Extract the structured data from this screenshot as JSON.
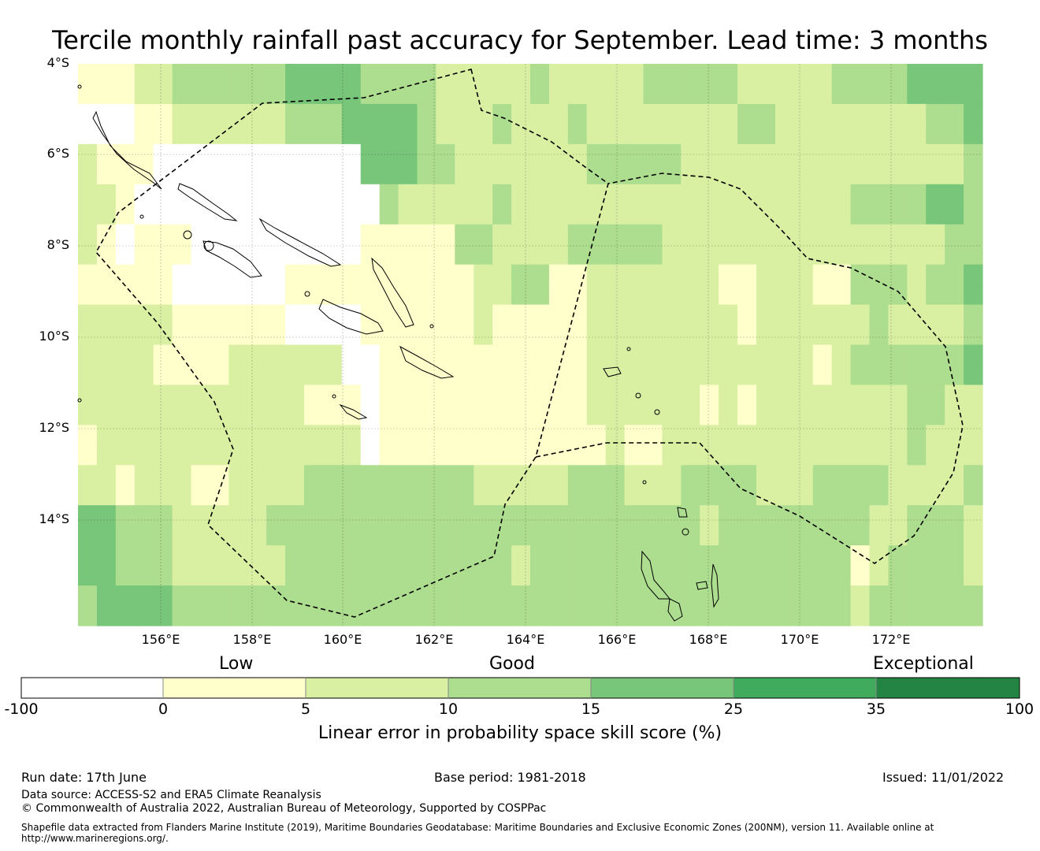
{
  "title": "Tercile monthly rainfall past accuracy for September. Lead time: 3 months",
  "axes": {
    "lat_ticks": [
      "4°S",
      "6°S",
      "8°S",
      "10°S",
      "12°S",
      "14°S"
    ],
    "lon_ticks": [
      "156°E",
      "158°E",
      "160°E",
      "162°E",
      "164°E",
      "166°E",
      "168°E",
      "170°E",
      "172°E"
    ]
  },
  "legend": {
    "categories": [
      "Low",
      "Good",
      "Exceptional"
    ],
    "ticks": [
      "-100",
      "0",
      "5",
      "10",
      "15",
      "25",
      "35",
      "100"
    ],
    "colors": [
      "#ffffff",
      "#ffffcc",
      "#d9f0a3",
      "#addd8e",
      "#78c679",
      "#41ab5d",
      "#238443"
    ],
    "label": "Linear error in probability space skill score (%)"
  },
  "footer": {
    "run_date": "Run date: 17th June",
    "base_period": "Base period: 1981-2018",
    "issued": "Issued: 11/01/2022",
    "data_source": "Data source: ACCESS-S2 and ERA5 Climate Reanalysis",
    "copyright": "© Commonwealth of Australia 2022, Australian Bureau of Meteorology, Supported by COSPPac",
    "shapefile": "Shapefile data extracted from Flanders Marine Institute (2019), Maritime Boundaries Geodatabase: Maritime Boundaries and Exclusive Economic Zones (200NM), version 11. Available online at http://www.marineregions.org/."
  },
  "grid": {
    "lon_start": "154.2°E",
    "lat_start": "4°S",
    "cell_deg": 0.833,
    "levels_legend": "0=white(<0), 1=yellow(0-5), 2=light green(5-10), 3=green(10-15), 4=mid green(15-25), 5=dark green(25-35)",
    "rows": [
      "111223333334444333322222322222333332222233334444",
      "111223333334444333322222322222333332222233334444",
      "000112222223334444322232223222222223322222222334",
      "000112222223334444322232223222222223322222222334",
      "211100000000000444332222222333332222222222222223",
      "211100000000000444332222222333332222222222222223",
      "221000000000000032222232222222222222222223333443",
      "221000000000000032222232222222222222222223333443",
      "210111000000000111113322223333322222222222222233",
      "210111000000000111113322223333322222222222222233",
      "111110000001111111111223311222222211222113332334",
      "111110000001111111111223311222222211222113332334",
      "222221111110000111111211111222222221222222322223",
      "222221111110000111111211111222222221222222322223",
      "222211112222220011111111111222222222222123333334",
      "222211112222220011111111111222222222222123333334",
      "222222222222111011111111111222222121222222223322",
      "222222222222111011111111111222222121222222223322",
      "122222222222222011111111111121122222222222223222",
      "122222222222222011111111111121122222222222223222",
      "221222112222333333333222223332223333222333322223",
      "221222112222333333333222223332223333222333322223",
      "443332222233333333333333333333333233333333223332",
      "443332222233333333333333333333333233333333223332",
      "443332222223333333333332333333333333333331233332",
      "443332222223333333333332333333333333333331233332",
      "344443333333333333333333333333333333333332333333",
      "344443333333333333333333333333333333333332333333"
    ]
  }
}
